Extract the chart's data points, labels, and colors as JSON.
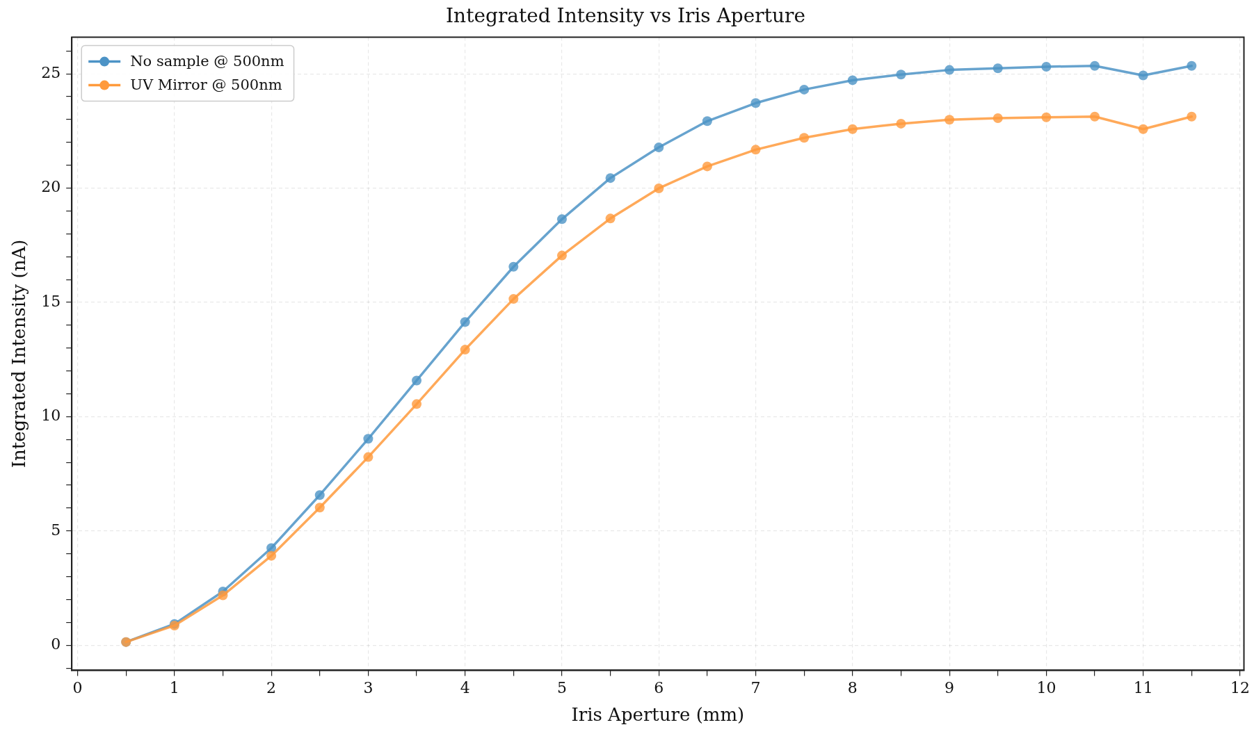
{
  "chart_data": {
    "type": "line",
    "title": "Integrated Intensity vs Iris Aperture",
    "xlabel": "Iris Aperture (mm)",
    "ylabel": "Integrated Intensity (nA)",
    "x": [
      0.5,
      1,
      1.5,
      2,
      2.5,
      3,
      3.5,
      4,
      4.5,
      5,
      5.5,
      6,
      6.5,
      7,
      7.5,
      8,
      8.5,
      9,
      9.5,
      10,
      10.5,
      11,
      11.5
    ],
    "series": [
      {
        "name": "No sample @ 500nm",
        "color": "#4c93c6",
        "values": [
          0.14,
          0.93,
          2.35,
          4.25,
          6.57,
          9.03,
          11.58,
          14.14,
          16.56,
          18.64,
          20.44,
          21.78,
          22.93,
          23.72,
          24.31,
          24.72,
          24.97,
          25.17,
          25.24,
          25.31,
          25.35,
          24.93,
          25.35
        ]
      },
      {
        "name": "UV Mirror @ 500nm",
        "color": "#ff9a3c",
        "values": [
          0.14,
          0.86,
          2.18,
          3.91,
          6.02,
          8.23,
          10.55,
          12.93,
          15.15,
          17.05,
          18.67,
          19.99,
          20.95,
          21.68,
          22.2,
          22.58,
          22.82,
          22.99,
          23.06,
          23.1,
          23.13,
          22.58,
          23.13
        ]
      }
    ],
    "xlim": [
      -0.06,
      12.04
    ],
    "ylim": [
      -1.1,
      26.6
    ],
    "xticks": [
      0,
      {
        "value": 0.5,
        "label": null
      },
      1,
      {
        "value": 1.5,
        "label": null
      },
      2,
      {
        "value": 2.5,
        "label": null
      },
      3,
      {
        "value": 3.5,
        "label": null
      },
      4,
      {
        "value": 4.5,
        "label": null
      },
      5,
      {
        "value": 5.5,
        "label": null
      },
      6,
      {
        "value": 6.5,
        "label": null
      },
      7,
      {
        "value": 7.5,
        "label": null
      },
      8,
      {
        "value": 8.5,
        "label": null
      },
      9,
      {
        "value": 9.5,
        "label": null
      },
      10,
      {
        "value": 10.5,
        "label": null
      },
      11,
      {
        "value": 11.5,
        "label": null
      },
      12
    ],
    "yticks": [
      {
        "value": -1,
        "label": null
      },
      0,
      {
        "value": 1,
        "label": null
      },
      {
        "value": 2,
        "label": null
      },
      {
        "value": 3,
        "label": null
      },
      {
        "value": 4,
        "label": null
      },
      5,
      {
        "value": 6,
        "label": null
      },
      {
        "value": 7,
        "label": null
      },
      {
        "value": 8,
        "label": null
      },
      {
        "value": 9,
        "label": null
      },
      10,
      {
        "value": 11,
        "label": null
      },
      {
        "value": 12,
        "label": null
      },
      {
        "value": 13,
        "label": null
      },
      {
        "value": 14,
        "label": null
      },
      15,
      {
        "value": 16,
        "label": null
      },
      {
        "value": 17,
        "label": null
      },
      {
        "value": 18,
        "label": null
      },
      {
        "value": 19,
        "label": null
      },
      20,
      {
        "value": 21,
        "label": null
      },
      {
        "value": 22,
        "label": null
      },
      {
        "value": 23,
        "label": null
      },
      {
        "value": 24,
        "label": null
      },
      25,
      {
        "value": 26,
        "label": null
      }
    ],
    "grid": true,
    "legend": "top left",
    "marker": "circle",
    "line_style": "solid"
  }
}
